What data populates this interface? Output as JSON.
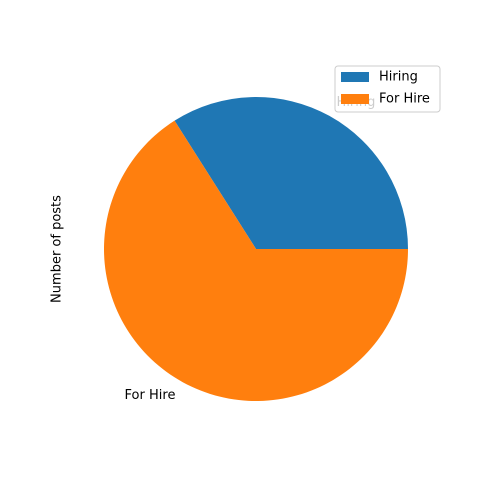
{
  "chart_data": {
    "type": "pie",
    "title": "",
    "ylabel": "Number of posts",
    "categories": [
      "Hiring",
      "For Hire"
    ],
    "values": [
      34,
      66
    ],
    "colors": [
      "#1f77b4",
      "#ff7f0e"
    ],
    "start_angle_deg": 0,
    "direction": "counterclockwise",
    "legend": {
      "placement": "top-right",
      "entries": [
        "Hiring",
        "For Hire"
      ]
    }
  }
}
